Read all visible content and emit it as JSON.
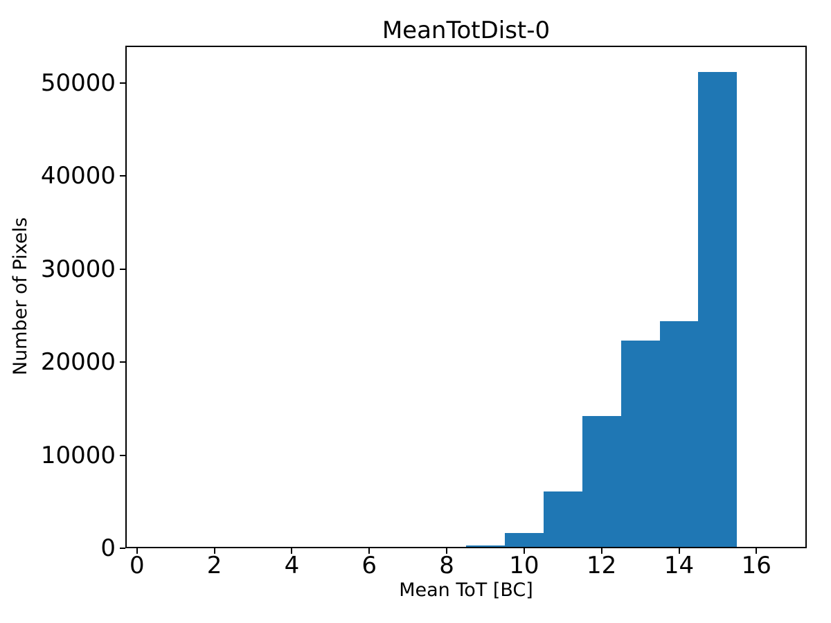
{
  "chart_data": {
    "type": "bar",
    "subtype": "histogram",
    "title": "MeanTotDist-0",
    "xlabel": "Mean ToT [BC]",
    "ylabel": "Number of Pixels",
    "bin_edges": [
      8.5,
      9.5,
      10.5,
      11.5,
      12.5,
      13.5,
      14.5,
      15.5
    ],
    "counts": [
      300,
      1600,
      6100,
      14200,
      22300,
      24400,
      51200
    ],
    "bar_color": "#1f77b4",
    "axis_color": "#000000",
    "text_color": "#000000",
    "background_color": "#ffffff",
    "xlim": [
      -0.3,
      17.3
    ],
    "ylim": [
      0,
      54000
    ],
    "xticks": [
      0,
      2,
      4,
      6,
      8,
      10,
      12,
      14,
      16
    ],
    "yticks": [
      0,
      10000,
      20000,
      30000,
      40000,
      50000
    ],
    "grid": false,
    "legend": null
  }
}
